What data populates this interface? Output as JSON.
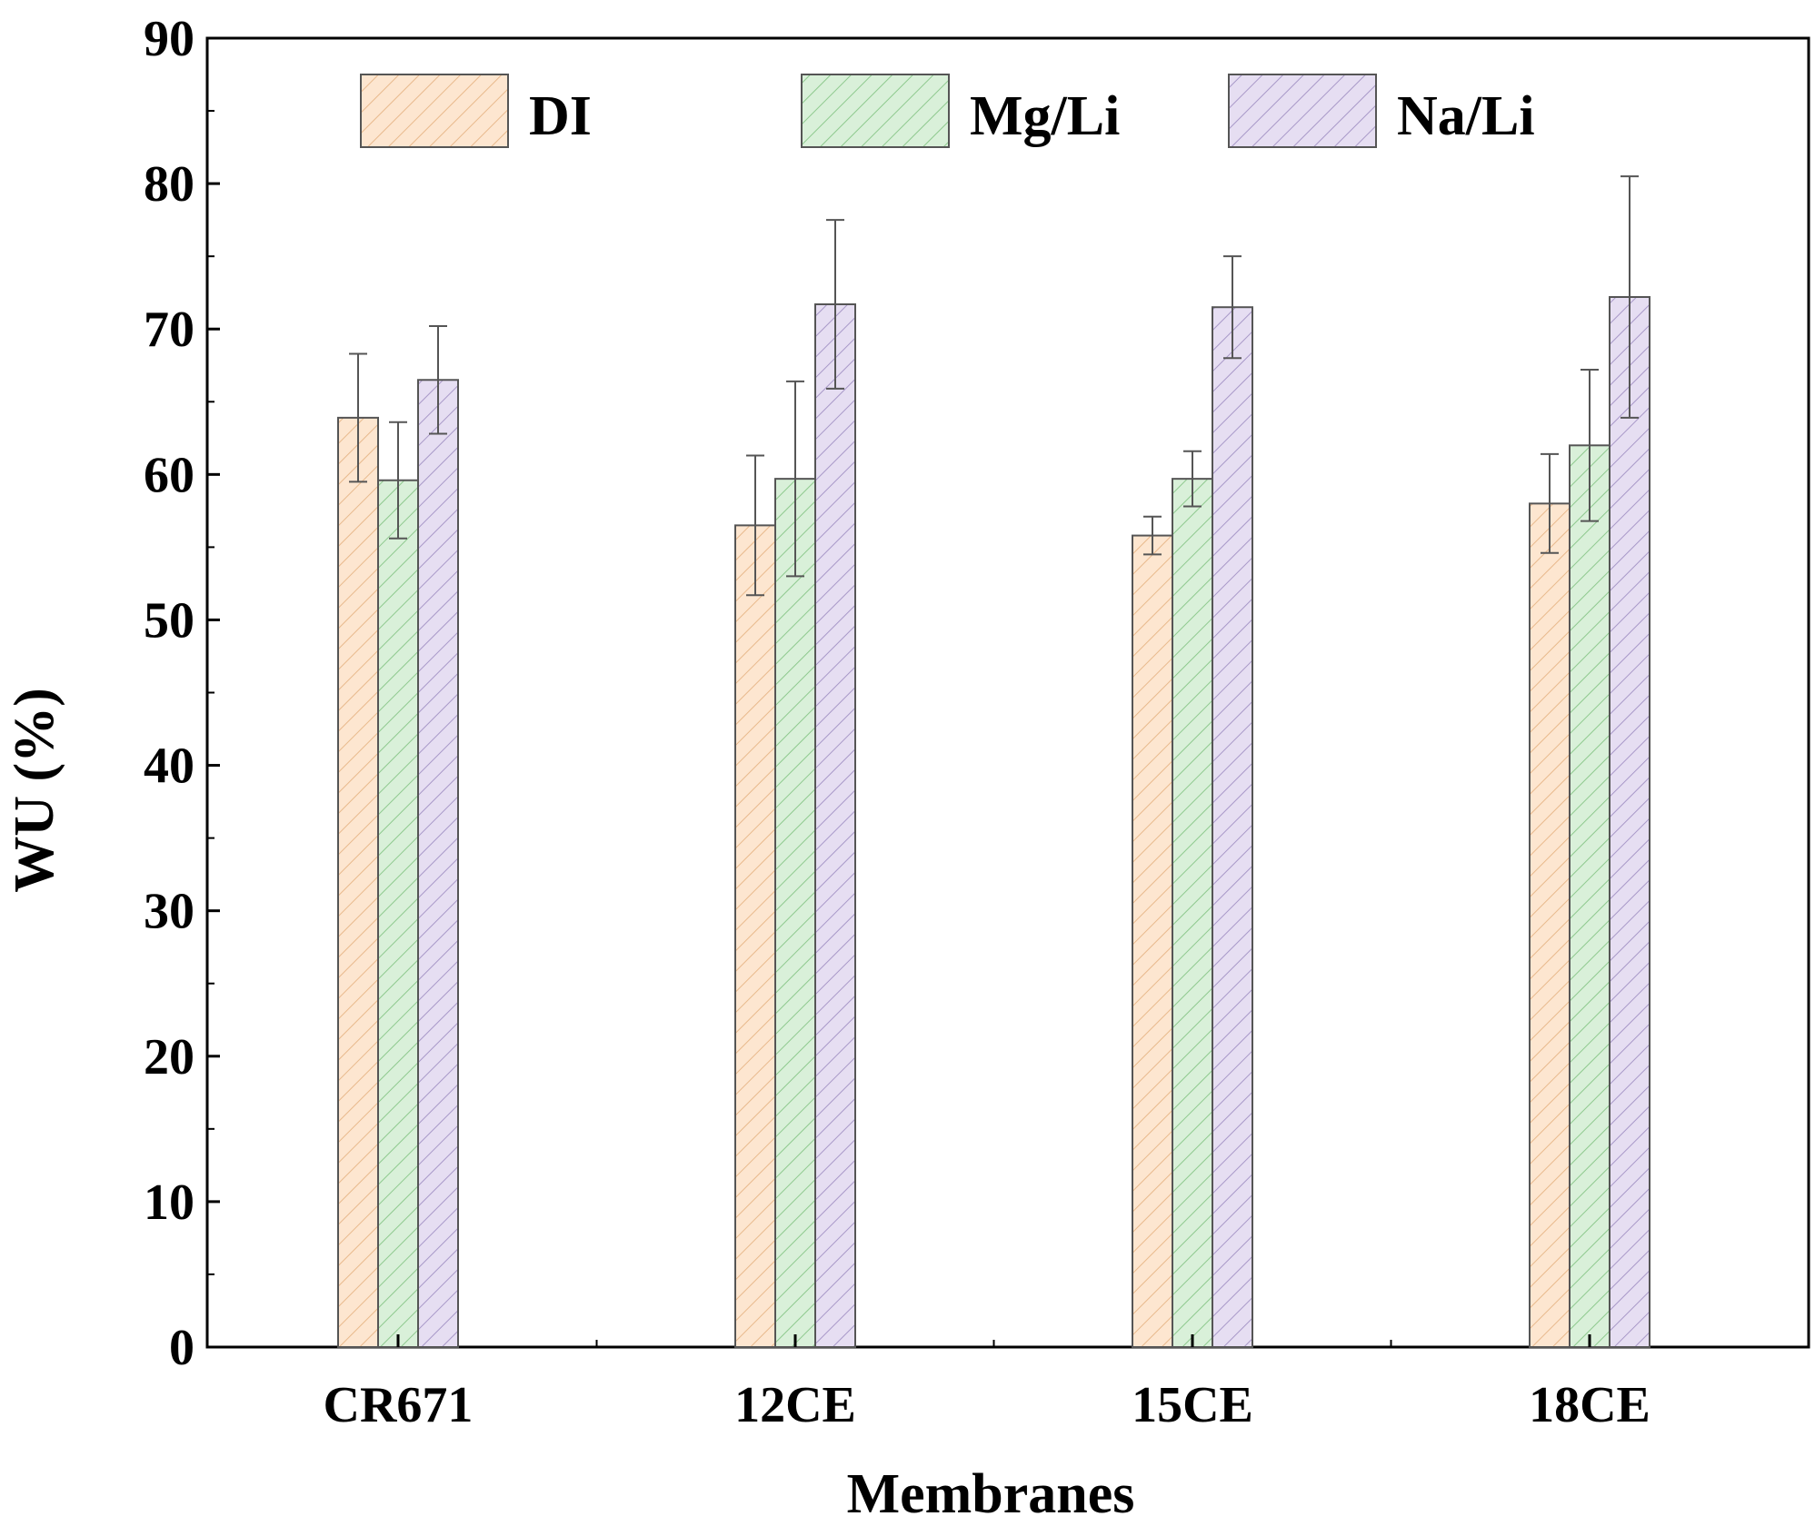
{
  "chart_data": {
    "type": "bar",
    "title": "",
    "xlabel": "Membranes",
    "ylabel": "WU (%)",
    "ylim": [
      0,
      90
    ],
    "yticks": [
      "0",
      "10",
      "20",
      "30",
      "40",
      "50",
      "60",
      "70",
      "80",
      "90"
    ],
    "categories": [
      "CR671",
      "12CE",
      "15CE",
      "18CE"
    ],
    "legend_position": "top",
    "grid": false,
    "series": [
      {
        "name": "DI",
        "color": "#fde6d0",
        "hatch": "#e8b98c",
        "values": [
          63.9,
          56.5,
          55.8,
          58.0
        ],
        "errors": [
          4.4,
          4.8,
          1.3,
          3.4
        ]
      },
      {
        "name": "Mg/Li",
        "color": "#d9f0d9",
        "hatch": "#8ec98e",
        "values": [
          59.6,
          59.7,
          59.7,
          62.0
        ],
        "errors": [
          4.0,
          6.7,
          1.9,
          5.2
        ]
      },
      {
        "name": "Na/Li",
        "color": "#e6def2",
        "hatch": "#a898c8",
        "values": [
          66.5,
          71.7,
          71.5,
          72.2
        ],
        "errors": [
          3.7,
          5.8,
          3.5,
          8.3
        ]
      }
    ]
  }
}
